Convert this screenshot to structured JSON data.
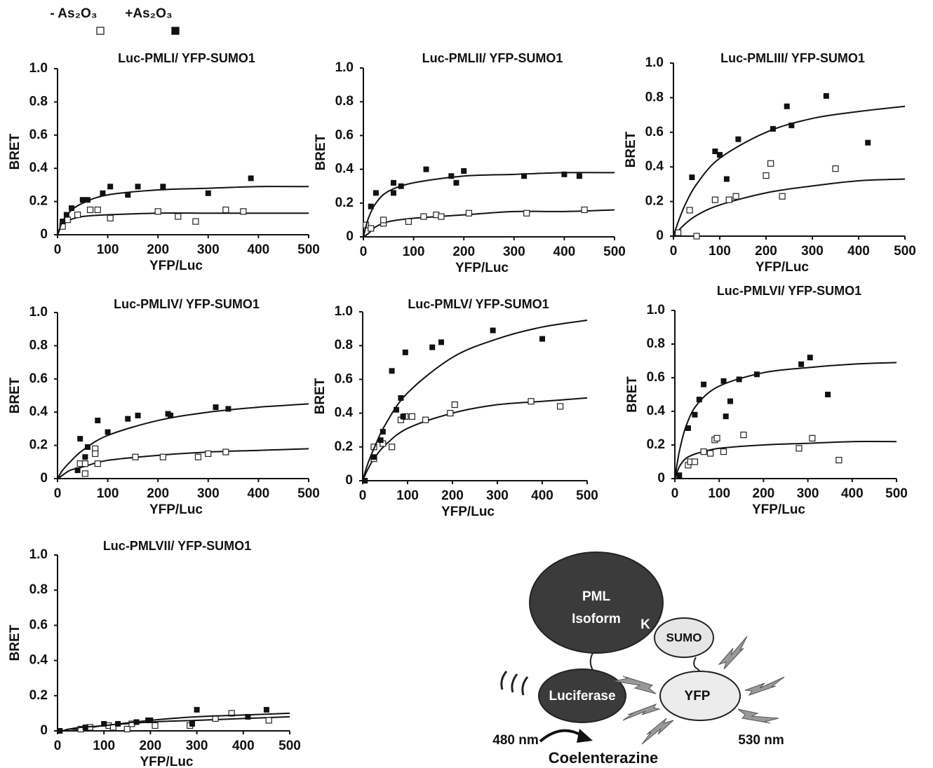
{
  "chart_data": [
    {
      "type": "scatter",
      "title": "Luc-PMLI/ YFP-SUMO1",
      "x_label": "YFP/Luc",
      "y_label": "BRET",
      "xlim": [
        0,
        500
      ],
      "ylim": [
        0,
        1
      ],
      "xticks": [
        0,
        100,
        200,
        300,
        400,
        500
      ],
      "yticks": [
        0,
        0.2,
        0.4,
        0.6,
        0.8,
        {
          "value": 1,
          "label": "1.0"
        }
      ],
      "series": [
        {
          "name": "- As₂O₃",
          "marker": "open",
          "color": "#222222",
          "x": [
            10,
            20,
            40,
            65,
            80,
            105,
            200,
            240,
            275,
            335,
            370
          ],
          "values": [
            0.05,
            0.09,
            0.12,
            0.15,
            0.15,
            0.1,
            0.14,
            0.11,
            0.08,
            0.15,
            0.14
          ],
          "fit_x": [
            0,
            10,
            25,
            50,
            100,
            200,
            300,
            400,
            500
          ],
          "fit_values": [
            0,
            0.06,
            0.09,
            0.11,
            0.12,
            0.13,
            0.13,
            0.13,
            0.13
          ]
        },
        {
          "name": "+As₂O₃",
          "marker": "filled",
          "color": "#111111",
          "x": [
            10,
            18,
            28,
            50,
            60,
            90,
            105,
            140,
            160,
            210,
            300,
            385
          ],
          "values": [
            0.08,
            0.12,
            0.16,
            0.21,
            0.21,
            0.25,
            0.29,
            0.24,
            0.29,
            0.29,
            0.25,
            0.34
          ],
          "fit_x": [
            0,
            10,
            25,
            50,
            100,
            200,
            300,
            400,
            500
          ],
          "fit_values": [
            0,
            0.08,
            0.14,
            0.19,
            0.24,
            0.27,
            0.28,
            0.29,
            0.29
          ]
        }
      ]
    },
    {
      "type": "scatter",
      "title": "Luc-PMLII/ YFP-SUMO1",
      "x_label": "YFP/Luc",
      "y_label": "BRET",
      "xlim": [
        0,
        500
      ],
      "ylim": [
        0,
        1
      ],
      "xticks": [
        0,
        100,
        200,
        300,
        400,
        500
      ],
      "yticks": [
        0,
        0.2,
        0.4,
        0.6,
        0.8,
        {
          "value": 1,
          "label": "1.0"
        }
      ],
      "series": [
        {
          "marker": "open",
          "color": "#222222",
          "x": [
            5,
            15,
            40,
            40,
            90,
            120,
            145,
            155,
            210,
            325,
            440
          ],
          "values": [
            0.07,
            0.05,
            0.08,
            0.1,
            0.09,
            0.12,
            0.13,
            0.12,
            0.14,
            0.14,
            0.16
          ],
          "fit_x": [
            0,
            10,
            25,
            50,
            100,
            200,
            300,
            400,
            500
          ],
          "fit_values": [
            0,
            0.02,
            0.06,
            0.09,
            0.11,
            0.13,
            0.15,
            0.15,
            0.16
          ]
        },
        {
          "marker": "filled",
          "color": "#111111",
          "x": [
            15,
            25,
            60,
            60,
            75,
            125,
            175,
            185,
            200,
            320,
            400,
            430
          ],
          "values": [
            0.18,
            0.26,
            0.26,
            0.32,
            0.3,
            0.4,
            0.36,
            0.32,
            0.39,
            0.36,
            0.37,
            0.36
          ],
          "fit_x": [
            0,
            10,
            25,
            50,
            100,
            200,
            300,
            400,
            500
          ],
          "fit_values": [
            0,
            0.11,
            0.2,
            0.27,
            0.32,
            0.36,
            0.37,
            0.38,
            0.38
          ]
        }
      ]
    },
    {
      "type": "scatter",
      "title": "Luc-PMLIII/ YFP-SUMO1",
      "x_label": "YFP/Luc",
      "y_label": "BRET",
      "xlim": [
        0,
        500
      ],
      "ylim": [
        0,
        1
      ],
      "xticks": [
        0,
        100,
        200,
        300,
        400,
        500
      ],
      "yticks": [
        0,
        0.2,
        0.4,
        0.6,
        0.8,
        {
          "value": 1,
          "label": "1.0"
        }
      ],
      "series": [
        {
          "marker": "open",
          "color": "#222222",
          "x": [
            10,
            35,
            50,
            90,
            120,
            135,
            200,
            210,
            235,
            350
          ],
          "values": [
            0.02,
            0.15,
            0,
            0.21,
            0.21,
            0.23,
            0.35,
            0.42,
            0.23,
            0.39
          ],
          "fit_x": [
            0,
            10,
            25,
            50,
            100,
            200,
            300,
            400,
            500
          ],
          "fit_values": [
            0,
            0.03,
            0.07,
            0.12,
            0.18,
            0.25,
            0.29,
            0.32,
            0.33
          ]
        },
        {
          "marker": "filled",
          "color": "#111111",
          "x": [
            40,
            90,
            100,
            115,
            140,
            215,
            245,
            255,
            330,
            420
          ],
          "values": [
            0.34,
            0.49,
            0.47,
            0.33,
            0.56,
            0.62,
            0.75,
            0.64,
            0.81,
            0.54
          ],
          "fit_x": [
            0,
            10,
            25,
            50,
            100,
            200,
            300,
            400,
            500
          ],
          "fit_values": [
            0,
            0.08,
            0.18,
            0.3,
            0.45,
            0.6,
            0.68,
            0.72,
            0.75
          ]
        }
      ]
    },
    {
      "type": "scatter",
      "title": "Luc-PMLIV/ YFP-SUMO1",
      "x_label": "YFP/Luc",
      "y_label": "BRET",
      "xlim": [
        0,
        500
      ],
      "ylim": [
        0,
        1
      ],
      "xticks": [
        0,
        100,
        200,
        300,
        400,
        500
      ],
      "yticks": [
        0,
        0.2,
        0.4,
        0.6,
        0.8,
        {
          "value": 1,
          "label": "1.0"
        }
      ],
      "series": [
        {
          "marker": "open",
          "color": "#222222",
          "x": [
            45,
            55,
            55,
            75,
            75,
            80,
            155,
            210,
            280,
            300,
            335
          ],
          "values": [
            0.09,
            0.03,
            0.09,
            0.18,
            0.15,
            0.09,
            0.13,
            0.13,
            0.13,
            0.15,
            0.16
          ],
          "fit_x": [
            0,
            10,
            25,
            50,
            100,
            200,
            300,
            400,
            500
          ],
          "fit_values": [
            0,
            0.02,
            0.05,
            0.07,
            0.11,
            0.14,
            0.16,
            0.17,
            0.18
          ]
        },
        {
          "marker": "filled",
          "color": "#111111",
          "x": [
            40,
            45,
            55,
            60,
            80,
            100,
            140,
            160,
            220,
            225,
            315,
            340
          ],
          "values": [
            0.05,
            0.24,
            0.13,
            0.19,
            0.35,
            0.28,
            0.36,
            0.38,
            0.39,
            0.38,
            0.43,
            0.42
          ],
          "fit_x": [
            0,
            10,
            25,
            50,
            100,
            200,
            300,
            400,
            500
          ],
          "fit_values": [
            0,
            0.05,
            0.1,
            0.17,
            0.26,
            0.35,
            0.4,
            0.43,
            0.45
          ]
        }
      ]
    },
    {
      "type": "scatter",
      "title": "Luc-PMLV/ YFP-SUMO1",
      "x_label": "YFP/Luc",
      "y_label": "BRET",
      "xlim": [
        0,
        500
      ],
      "ylim": [
        0,
        1
      ],
      "xticks": [
        0,
        100,
        200,
        300,
        400,
        500
      ],
      "yticks": [
        0,
        0.2,
        0.4,
        0.6,
        0.8,
        {
          "value": 1,
          "label": "1.0"
        }
      ],
      "series": [
        {
          "marker": "open",
          "color": "#222222",
          "x": [
            25,
            25,
            45,
            65,
            85,
            95,
            110,
            140,
            195,
            205,
            375,
            440
          ],
          "values": [
            0.2,
            0.13,
            0.22,
            0.2,
            0.36,
            0.38,
            0.38,
            0.36,
            0.4,
            0.45,
            0.47,
            0.44
          ],
          "fit_x": [
            0,
            10,
            25,
            50,
            100,
            200,
            300,
            400,
            500
          ],
          "fit_values": [
            0,
            0.06,
            0.13,
            0.21,
            0.31,
            0.4,
            0.45,
            0.47,
            0.49
          ]
        },
        {
          "marker": "filled",
          "color": "#111111",
          "x": [
            5,
            25,
            40,
            45,
            65,
            75,
            85,
            90,
            95,
            155,
            175,
            290,
            400
          ],
          "values": [
            0,
            0.14,
            0.24,
            0.29,
            0.65,
            0.42,
            0.49,
            0.38,
            0.76,
            0.79,
            0.82,
            0.89,
            0.84
          ],
          "fit_x": [
            0,
            10,
            25,
            50,
            100,
            200,
            300,
            400,
            500
          ],
          "fit_values": [
            0,
            0.09,
            0.19,
            0.33,
            0.52,
            0.73,
            0.84,
            0.91,
            0.95
          ]
        }
      ]
    },
    {
      "type": "scatter",
      "title": "Luc-PMLVI/ YFP-SUMO1",
      "x_label": "YFP/Luc",
      "y_label": "BRET",
      "xlim": [
        0,
        500
      ],
      "ylim": [
        0,
        1
      ],
      "xticks": [
        0,
        100,
        200,
        300,
        400,
        500
      ],
      "yticks": [
        0,
        0.2,
        0.4,
        0.6,
        0.8,
        {
          "value": 1,
          "label": "1.0"
        }
      ],
      "series": [
        {
          "marker": "open",
          "color": "#222222",
          "x": [
            30,
            35,
            45,
            65,
            80,
            90,
            95,
            110,
            155,
            280,
            310,
            370
          ],
          "values": [
            0.08,
            0.1,
            0.1,
            0.16,
            0.15,
            0.23,
            0.24,
            0.16,
            0.26,
            0.18,
            0.24,
            0.11
          ],
          "fit_x": [
            0,
            10,
            25,
            50,
            100,
            200,
            300,
            400,
            500
          ],
          "fit_values": [
            0,
            0.07,
            0.12,
            0.15,
            0.18,
            0.2,
            0.21,
            0.22,
            0.22
          ]
        },
        {
          "marker": "filled",
          "color": "#111111",
          "x": [
            10,
            30,
            45,
            55,
            65,
            110,
            115,
            125,
            145,
            185,
            285,
            305,
            345
          ],
          "values": [
            0.02,
            0.3,
            0.38,
            0.47,
            0.56,
            0.58,
            0.37,
            0.46,
            0.59,
            0.62,
            0.68,
            0.72,
            0.5
          ],
          "fit_x": [
            0,
            10,
            25,
            50,
            100,
            200,
            300,
            400,
            500
          ],
          "fit_values": [
            0,
            0.16,
            0.31,
            0.44,
            0.55,
            0.63,
            0.66,
            0.68,
            0.69
          ]
        }
      ]
    },
    {
      "type": "scatter",
      "title": "Luc-PMLVII/ YFP-SUMO1",
      "x_label": "YFP/Luc",
      "y_label": "BRET",
      "xlim": [
        0,
        500
      ],
      "ylim": [
        0,
        1
      ],
      "xticks": [
        0,
        100,
        200,
        300,
        400,
        500
      ],
      "yticks": [
        0,
        0.2,
        0.4,
        0.6,
        0.8,
        {
          "value": 1,
          "label": "1.0"
        }
      ],
      "series": [
        {
          "marker": "open",
          "color": "#222222",
          "x": [
            50,
            70,
            110,
            120,
            150,
            160,
            210,
            285,
            340,
            375,
            455
          ],
          "values": [
            0.01,
            0.02,
            0.03,
            0.02,
            0.01,
            0.04,
            0.03,
            0.03,
            0.07,
            0.1,
            0.06
          ],
          "fit_x": [
            0,
            10,
            25,
            50,
            100,
            200,
            300,
            400,
            500
          ],
          "fit_values": [
            0,
            0,
            0.01,
            0.01,
            0.03,
            0.05,
            0.06,
            0.07,
            0.08
          ]
        },
        {
          "marker": "filled",
          "color": "#111111",
          "x": [
            5,
            60,
            100,
            130,
            170,
            195,
            200,
            290,
            300,
            410,
            450
          ],
          "values": [
            0,
            0.02,
            0.04,
            0.04,
            0.05,
            0.06,
            0.06,
            0.04,
            0.12,
            0.08,
            0.12
          ],
          "fit_x": [
            0,
            10,
            25,
            50,
            100,
            200,
            300,
            400,
            500
          ],
          "fit_values": [
            0,
            0,
            0.01,
            0.02,
            0.03,
            0.06,
            0.08,
            0.09,
            0.1
          ]
        }
      ]
    }
  ],
  "diagram": {
    "pml": "PML",
    "isoform": "Isoform",
    "lysine": "K",
    "sumo": "SUMO",
    "luciferase": "Luciferase",
    "yfp": "YFP",
    "excitation": "480 nm",
    "emission": "530 nm",
    "substrate": "Coelenterazine"
  }
}
